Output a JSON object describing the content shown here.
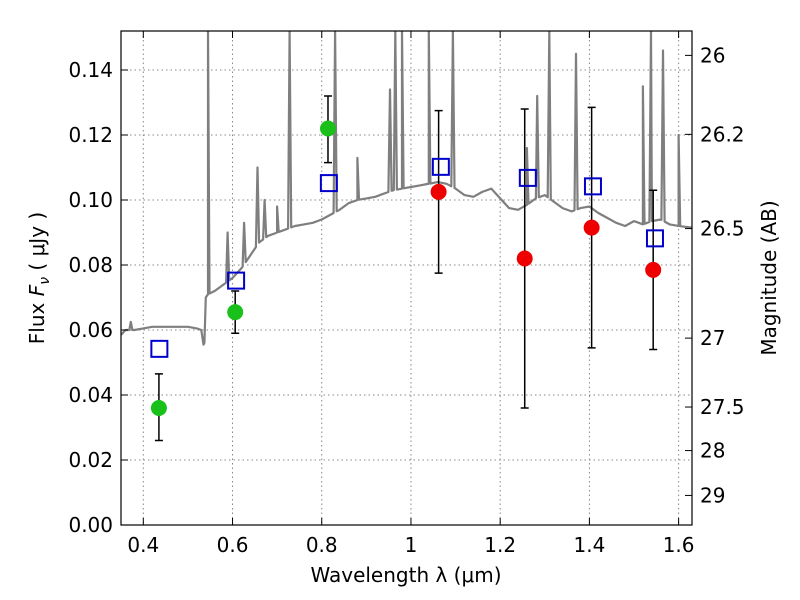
{
  "chart_data": {
    "type": "scatter",
    "xlabel": "Wavelength  λ (μm)",
    "ylabel": "Flux  F_ν  ( μJy )",
    "ylabel_parts": {
      "pre": "Flux  ",
      "math": "F",
      "sub": "ν",
      "post": "  ( μJy )"
    },
    "y2label": "Magnitude (AB)",
    "xlim": [
      0.35,
      1.63
    ],
    "ylim": [
      0.0,
      0.152
    ],
    "xticks": [
      0.4,
      0.6,
      0.8,
      1.0,
      1.2,
      1.4,
      1.6
    ],
    "xtick_labels": [
      "0.4",
      "0.6",
      "0.8",
      "1",
      "1.2",
      "1.4",
      "1.6"
    ],
    "yticks": [
      0.0,
      0.02,
      0.04,
      0.06,
      0.08,
      0.1,
      0.12,
      0.14
    ],
    "ytick_labels": [
      "0.00",
      "0.02",
      "0.04",
      "0.06",
      "0.08",
      "0.10",
      "0.12",
      "0.14"
    ],
    "y2ticks": [
      {
        "label": "26",
        "flux": 0.1445
      },
      {
        "label": "26.2",
        "flux": 0.1202
      },
      {
        "label": "26.5",
        "flux": 0.0912
      },
      {
        "label": "27",
        "flux": 0.0575
      },
      {
        "label": "27.5",
        "flux": 0.0363
      },
      {
        "label": "28",
        "flux": 0.0229
      },
      {
        "label": "29",
        "flux": 0.0091
      }
    ],
    "grid": true,
    "colors": {
      "spectrum": "#7f7f7f",
      "green": "#19c019",
      "red": "#ee0000",
      "model": "#0000cc",
      "errorbar": "#000000",
      "grid": "#888888"
    },
    "series": [
      {
        "marker": "circle",
        "color": "#19c019",
        "points": [
          {
            "x": 0.435,
            "y": 0.036,
            "yerr_low": 0.026,
            "yerr_high": 0.0465
          },
          {
            "x": 0.606,
            "y": 0.0655,
            "yerr_low": 0.059,
            "yerr_high": 0.072
          },
          {
            "x": 0.814,
            "y": 0.122,
            "yerr_low": 0.1115,
            "yerr_high": 0.132
          }
        ]
      },
      {
        "marker": "circle",
        "color": "#ee0000",
        "points": [
          {
            "x": 1.062,
            "y": 0.1025,
            "yerr_low": 0.0775,
            "yerr_high": 0.1275
          },
          {
            "x": 1.255,
            "y": 0.082,
            "yerr_low": 0.036,
            "yerr_high": 0.128
          },
          {
            "x": 1.405,
            "y": 0.0915,
            "yerr_low": 0.0545,
            "yerr_high": 0.1285
          },
          {
            "x": 1.543,
            "y": 0.0785,
            "yerr_low": 0.054,
            "yerr_high": 0.103
          }
        ]
      },
      {
        "marker": "open-square",
        "color": "#0000cc",
        "points": [
          {
            "x": 0.436,
            "y": 0.0542
          },
          {
            "x": 0.608,
            "y": 0.0752
          },
          {
            "x": 0.816,
            "y": 0.1052
          },
          {
            "x": 1.067,
            "y": 0.1102
          },
          {
            "x": 1.262,
            "y": 0.1068
          },
          {
            "x": 1.408,
            "y": 0.1042
          },
          {
            "x": 1.547,
            "y": 0.0882
          }
        ]
      }
    ],
    "spectrum": {
      "color": "#7f7f7f",
      "continuum": [
        [
          0.35,
          0.0585
        ],
        [
          0.36,
          0.06
        ],
        [
          0.38,
          0.06
        ],
        [
          0.4,
          0.0605
        ],
        [
          0.42,
          0.061
        ],
        [
          0.44,
          0.061
        ],
        [
          0.46,
          0.061
        ],
        [
          0.48,
          0.061
        ],
        [
          0.5,
          0.061
        ],
        [
          0.52,
          0.0605
        ],
        [
          0.53,
          0.06
        ],
        [
          0.535,
          0.0555
        ],
        [
          0.537,
          0.056
        ],
        [
          0.54,
          0.07
        ],
        [
          0.545,
          0.071
        ],
        [
          0.56,
          0.072
        ],
        [
          0.58,
          0.074
        ],
        [
          0.6,
          0.076
        ],
        [
          0.62,
          0.079
        ],
        [
          0.64,
          0.083
        ],
        [
          0.66,
          0.087
        ],
        [
          0.68,
          0.089
        ],
        [
          0.7,
          0.09
        ],
        [
          0.72,
          0.091
        ],
        [
          0.74,
          0.092
        ],
        [
          0.76,
          0.0925
        ],
        [
          0.78,
          0.093
        ],
        [
          0.8,
          0.094
        ],
        [
          0.82,
          0.0955
        ],
        [
          0.84,
          0.097
        ],
        [
          0.86,
          0.099
        ],
        [
          0.88,
          0.1
        ],
        [
          0.9,
          0.1005
        ],
        [
          0.92,
          0.101
        ],
        [
          0.94,
          0.102
        ],
        [
          0.96,
          0.103
        ],
        [
          0.98,
          0.1035
        ],
        [
          1.0,
          0.104
        ],
        [
          1.02,
          0.1045
        ],
        [
          1.04,
          0.105
        ],
        [
          1.06,
          0.1055
        ],
        [
          1.08,
          0.105
        ],
        [
          1.1,
          0.1035
        ],
        [
          1.12,
          0.1015
        ],
        [
          1.14,
          0.101
        ],
        [
          1.16,
          0.1025
        ],
        [
          1.18,
          0.1035
        ],
        [
          1.2,
          0.1005
        ],
        [
          1.22,
          0.0975
        ],
        [
          1.24,
          0.097
        ],
        [
          1.26,
          0.0985
        ],
        [
          1.28,
          0.1005
        ],
        [
          1.3,
          0.1015
        ],
        [
          1.32,
          0.0995
        ],
        [
          1.34,
          0.0975
        ],
        [
          1.36,
          0.0965
        ],
        [
          1.38,
          0.0975
        ],
        [
          1.4,
          0.098
        ],
        [
          1.42,
          0.096
        ],
        [
          1.44,
          0.0945
        ],
        [
          1.46,
          0.093
        ],
        [
          1.48,
          0.092
        ],
        [
          1.5,
          0.0935
        ],
        [
          1.52,
          0.0925
        ],
        [
          1.54,
          0.0935
        ],
        [
          1.56,
          0.094
        ],
        [
          1.58,
          0.0925
        ],
        [
          1.6,
          0.092
        ],
        [
          1.63,
          0.0915
        ]
      ],
      "lines": [
        {
          "x": 0.372,
          "peak": 0.0625
        },
        {
          "x": 0.545,
          "peak": 0.152
        },
        {
          "x": 0.589,
          "peak": 0.09
        },
        {
          "x": 0.626,
          "peak": 0.093
        },
        {
          "x": 0.656,
          "peak": 0.11
        },
        {
          "x": 0.672,
          "peak": 0.1
        },
        {
          "x": 0.7,
          "peak": 0.098
        },
        {
          "x": 0.728,
          "peak": 0.152
        },
        {
          "x": 0.83,
          "peak": 0.152
        },
        {
          "x": 0.88,
          "peak": 0.113
        },
        {
          "x": 0.953,
          "peak": 0.134
        },
        {
          "x": 0.965,
          "peak": 0.152
        },
        {
          "x": 0.98,
          "peak": 0.152
        },
        {
          "x": 1.04,
          "peak": 0.152
        },
        {
          "x": 1.094,
          "peak": 0.152
        },
        {
          "x": 1.26,
          "peak": 0.116
        },
        {
          "x": 1.283,
          "peak": 0.132
        },
        {
          "x": 1.31,
          "peak": 0.152
        },
        {
          "x": 1.37,
          "peak": 0.145
        },
        {
          "x": 1.52,
          "peak": 0.135
        },
        {
          "x": 1.538,
          "peak": 0.152
        },
        {
          "x": 1.565,
          "peak": 0.146
        },
        {
          "x": 1.6,
          "peak": 0.12
        }
      ]
    }
  }
}
